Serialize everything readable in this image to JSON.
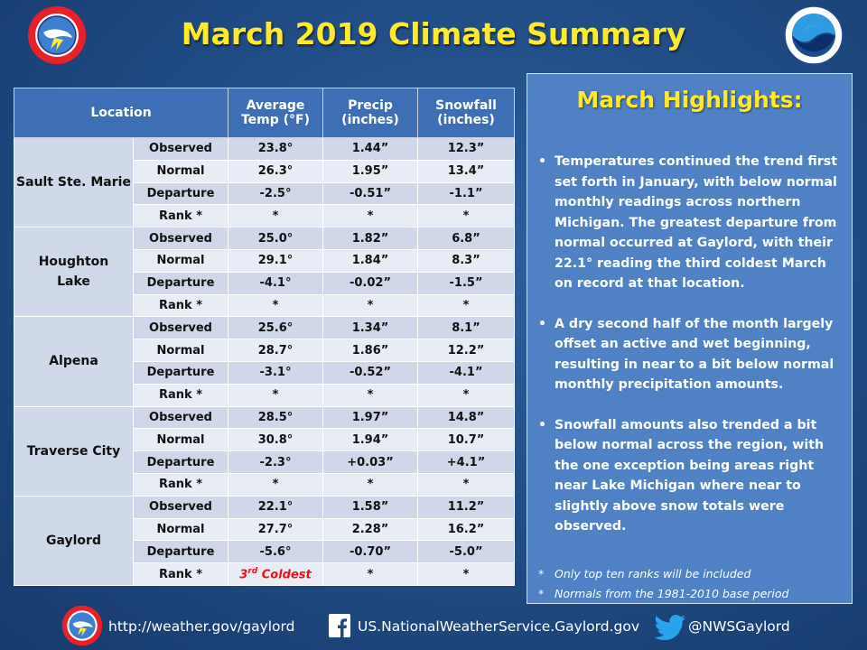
{
  "title": "March 2019 Climate Summary",
  "table": {
    "headers": {
      "location": "Location",
      "temp": [
        "Average",
        "Temp (°F)"
      ],
      "precip": [
        "Precip",
        "(inches)"
      ],
      "snow": [
        "Snowfall",
        "(inches)"
      ]
    },
    "locations": [
      {
        "name": "Sault Ste. Marie",
        "rows": [
          {
            "label": "Observed",
            "temp": "23.8°",
            "precip": "1.44”",
            "snow": "12.3”"
          },
          {
            "label": "Normal",
            "temp": "26.3°",
            "precip": "1.95”",
            "snow": "13.4”"
          },
          {
            "label": "Departure",
            "temp": "-2.5°",
            "precip": "-0.51”",
            "snow": "-1.1”"
          },
          {
            "label": "Rank *",
            "temp": "*",
            "precip": "*",
            "snow": "*"
          }
        ]
      },
      {
        "name": "Houghton Lake",
        "rows": [
          {
            "label": "Observed",
            "temp": "25.0°",
            "precip": "1.82”",
            "snow": "6.8”"
          },
          {
            "label": "Normal",
            "temp": "29.1°",
            "precip": "1.84”",
            "snow": "8.3”"
          },
          {
            "label": "Departure",
            "temp": "-4.1°",
            "precip": "-0.02”",
            "snow": "-1.5”"
          },
          {
            "label": "Rank *",
            "temp": "*",
            "precip": "*",
            "snow": "*"
          }
        ]
      },
      {
        "name": "Alpena",
        "rows": [
          {
            "label": "Observed",
            "temp": "25.6°",
            "precip": "1.34”",
            "snow": "8.1”"
          },
          {
            "label": "Normal",
            "temp": "28.7°",
            "precip": "1.86”",
            "snow": "12.2”"
          },
          {
            "label": "Departure",
            "temp": "-3.1°",
            "precip": "-0.52”",
            "snow": "-4.1”"
          },
          {
            "label": "Rank *",
            "temp": "*",
            "precip": "*",
            "snow": "*"
          }
        ]
      },
      {
        "name": "Traverse City",
        "rows": [
          {
            "label": "Observed",
            "temp": "28.5°",
            "precip": "1.97”",
            "snow": "14.8”"
          },
          {
            "label": "Normal",
            "temp": "30.8°",
            "precip": "1.94”",
            "snow": "10.7”"
          },
          {
            "label": "Departure",
            "temp": "-2.3°",
            "precip": "+0.03”",
            "snow": "+4.1”"
          },
          {
            "label": "Rank *",
            "temp": "*",
            "precip": "*",
            "snow": "*"
          }
        ]
      },
      {
        "name": "Gaylord",
        "rows": [
          {
            "label": "Observed",
            "temp": "22.1°",
            "precip": "1.58”",
            "snow": "11.2”"
          },
          {
            "label": "Normal",
            "temp": "27.7°",
            "precip": "2.28”",
            "snow": "16.2”"
          },
          {
            "label": "Departure",
            "temp": "-5.6°",
            "precip": "-0.70”",
            "snow": "-5.0”"
          },
          {
            "label": "Rank *",
            "temp": "",
            "precip": "*",
            "snow": "*"
          }
        ]
      }
    ],
    "gaylord_rank": {
      "num": "3",
      "sup": "rd",
      "text": " Coldest",
      "color": "#e11111"
    }
  },
  "highlights": {
    "title": "March Highlights:",
    "items": [
      "Temperatures continued the trend first set forth in January, with below normal monthly readings across northern Michigan. The greatest departure from normal occurred at Gaylord, with their 22.1° reading the third coldest March on record at that location.",
      "A dry second half of the month largely offset an active and wet beginning, resulting in near to a bit below normal monthly precipitation amounts.",
      "Snowfall amounts also trended a bit below normal across the region, with the one exception being areas right near Lake Michigan where near to slightly above snow totals were observed."
    ],
    "notes": [
      "Only top ten ranks will be included",
      "Normals from the 1981-2010 base period"
    ]
  },
  "footer": {
    "website": "http://weather.gov/gaylord",
    "facebook": "US.NationalWeatherService.Gaylord.gov",
    "twitter": "@NWSGaylord"
  },
  "colors": {
    "title_yellow": "#ffe92a",
    "header_blue": "#3e6fb5",
    "panel_blue": "#4f81c4",
    "rank_red": "#e11111"
  },
  "icons": [
    "nws-logo-icon",
    "noaa-logo-icon",
    "facebook-icon",
    "twitter-icon"
  ]
}
